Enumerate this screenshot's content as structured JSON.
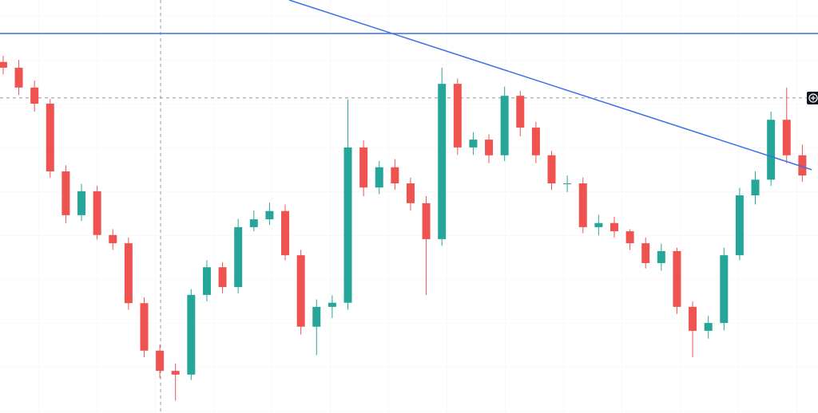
{
  "chart_data": {
    "type": "candlestick",
    "xlim": [
      -0.2,
      52
    ],
    "ylim": [
      0,
      100
    ],
    "open": [
      85.0,
      83.6,
      78.8,
      74.9,
      58.5,
      47.9,
      53.7,
      43.1,
      41.1,
      26.6,
      15.1,
      10.2,
      9.3,
      28.6,
      35.3,
      30.5,
      45.0,
      46.9,
      48.9,
      38.2,
      20.9,
      25.7,
      26.7,
      64.3,
      54.6,
      59.5,
      55.6,
      50.8,
      42.1,
      79.7,
      64.3,
      66.2,
      62.4,
      76.8,
      69.1,
      62.4,
      55.6,
      55.6,
      45.0,
      46.0,
      44.0,
      41.1,
      36.3,
      39.2,
      25.7,
      19.9,
      21.8,
      38.2,
      52.7,
      56.5,
      71.0,
      62.4
    ],
    "high": [
      86.5,
      85.5,
      80.5,
      76.0,
      60.0,
      55.5,
      55.0,
      44.5,
      42.5,
      28.0,
      16.5,
      12.0,
      30.0,
      37.0,
      36.5,
      47.0,
      49.0,
      51.0,
      50.5,
      39.5,
      27.5,
      28.5,
      75.9,
      66.0,
      61.0,
      61.5,
      57.0,
      52.5,
      83.6,
      81.0,
      68.0,
      67.5,
      79.0,
      78.0,
      70.5,
      63.5,
      57.5,
      57.0,
      48.0,
      47.5,
      44.5,
      42.5,
      41.0,
      40.0,
      27.0,
      23.5,
      40.0,
      54.5,
      58.5,
      73.0,
      78.8,
      65.0
    ],
    "low": [
      82.0,
      77.0,
      73.0,
      57.0,
      46.0,
      46.5,
      42.0,
      39.5,
      25.0,
      13.5,
      8.5,
      3.0,
      8.0,
      27.0,
      29.0,
      29.0,
      44.0,
      45.5,
      37.0,
      19.0,
      14.0,
      23.0,
      25.0,
      52.5,
      53.0,
      54.0,
      49.0,
      28.6,
      40.5,
      62.5,
      62.5,
      60.5,
      61.0,
      67.0,
      60.5,
      54.0,
      53.5,
      43.5,
      43.0,
      42.5,
      39.5,
      35.0,
      34.5,
      24.0,
      13.5,
      18.0,
      20.0,
      37.0,
      50.5,
      55.0,
      60.5,
      56.0
    ],
    "close": [
      83.6,
      78.8,
      74.9,
      58.5,
      47.9,
      53.7,
      43.1,
      41.1,
      26.6,
      15.1,
      10.2,
      9.3,
      28.6,
      35.3,
      30.5,
      45.0,
      46.9,
      48.9,
      38.2,
      20.9,
      25.7,
      26.7,
      64.3,
      54.6,
      59.5,
      55.6,
      50.8,
      42.1,
      79.7,
      64.3,
      66.2,
      62.4,
      76.8,
      69.1,
      62.4,
      55.6,
      55.6,
      45.0,
      46.0,
      44.0,
      41.1,
      36.3,
      39.2,
      25.7,
      19.9,
      21.8,
      38.2,
      52.7,
      56.5,
      71.0,
      62.4,
      57.5
    ],
    "up_color": "#26a69a",
    "down_color": "#ef5350",
    "hline": {
      "value": 91.9,
      "color": "#3d6ee8"
    },
    "trendline": {
      "x": [
        18.25,
        51.6
      ],
      "values": [
        100,
        58.9
      ],
      "color": "#3d6ee8"
    },
    "crosshair": {
      "x": 10.05,
      "value": 76.3
    }
  }
}
